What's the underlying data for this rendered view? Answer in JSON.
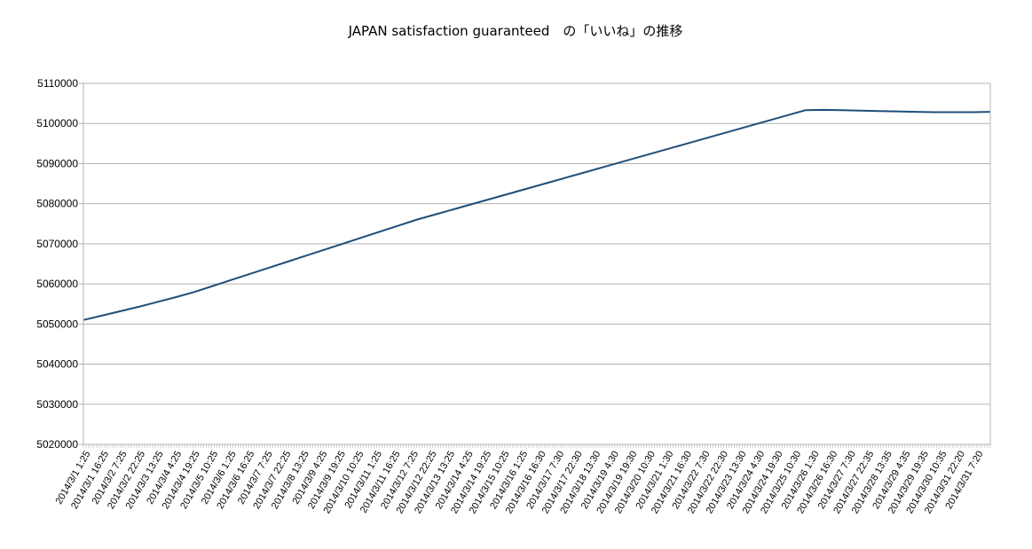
{
  "chart_data": {
    "type": "line",
    "title": "JAPAN satisfaction guaranteed　の「いいね」の推移",
    "xlabel": "",
    "ylabel": "",
    "ylim": [
      5020000,
      5110000
    ],
    "yticks": [
      "5110000",
      "5100000",
      "5090000",
      "5080000",
      "5070000",
      "5060000",
      "5050000",
      "5040000",
      "5030000",
      "5020000"
    ],
    "grid": true,
    "legend": "none",
    "line_color": "#1f4e79",
    "x_tick_labels": [
      "2014/3/1  1:25",
      "2014/3/1  16:25",
      "2014/3/2  7:25",
      "2014/3/2  22:25",
      "2014/3/3  13:25",
      "2014/3/4  4:25",
      "2014/3/4  19:25",
      "2014/3/5  10:25",
      "2014/3/6  1:25",
      "2014/3/6  16:25",
      "2014/3/7  7:25",
      "2014/3/7  22:25",
      "2014/3/8  13:25",
      "2014/3/9  4:25",
      "2014/3/9  19:25",
      "2014/3/10  10:25",
      "2014/3/11  1:25",
      "2014/3/11  16:25",
      "2014/3/12  7:25",
      "2014/3/12  22:25",
      "2014/3/13  13:25",
      "2014/3/14  4:25",
      "2014/3/14  19:25",
      "2014/3/15  10:25",
      "2014/3/16  1:25",
      "2014/3/16  16:30",
      "2014/3/17  7:30",
      "2014/3/17  22:30",
      "2014/3/18  13:30",
      "2014/3/19  4:30",
      "2014/3/19  19:30",
      "2014/3/20  10:30",
      "2014/3/21  1:30",
      "2014/3/21  16:30",
      "2014/3/22  7:30",
      "2014/3/22  22:30",
      "2014/3/23  13:30",
      "2014/3/24  4:30",
      "2014/3/24  19:30",
      "2014/3/25  10:30",
      "2014/3/26  1:30",
      "2014/3/26  16:30",
      "2014/3/27  7:30",
      "2014/3/27  22:35",
      "2014/3/28  13:35",
      "2014/3/29  4:35",
      "2014/3/29  19:35",
      "2014/3/30  10:35",
      "2014/3/31  22:20",
      "2014/3/31  7:20"
    ],
    "series": [
      {
        "values": [
          5051000,
          5052100,
          5053200,
          5054300,
          5055500,
          5056700,
          5058000,
          5059500,
          5061000,
          5062500,
          5064000,
          5065500,
          5067000,
          5068500,
          5070000,
          5071500,
          5073000,
          5074500,
          5076000,
          5077300,
          5078600,
          5079900,
          5081200,
          5082500,
          5083800,
          5085100,
          5086400,
          5087700,
          5089000,
          5090300,
          5091600,
          5092900,
          5094200,
          5095500,
          5096800,
          5098100,
          5099400,
          5100700,
          5102000,
          5103300,
          5103400,
          5103300,
          5103200,
          5103100,
          5103000,
          5102900,
          5102800,
          5102800,
          5102800,
          5102900
        ]
      }
    ]
  }
}
